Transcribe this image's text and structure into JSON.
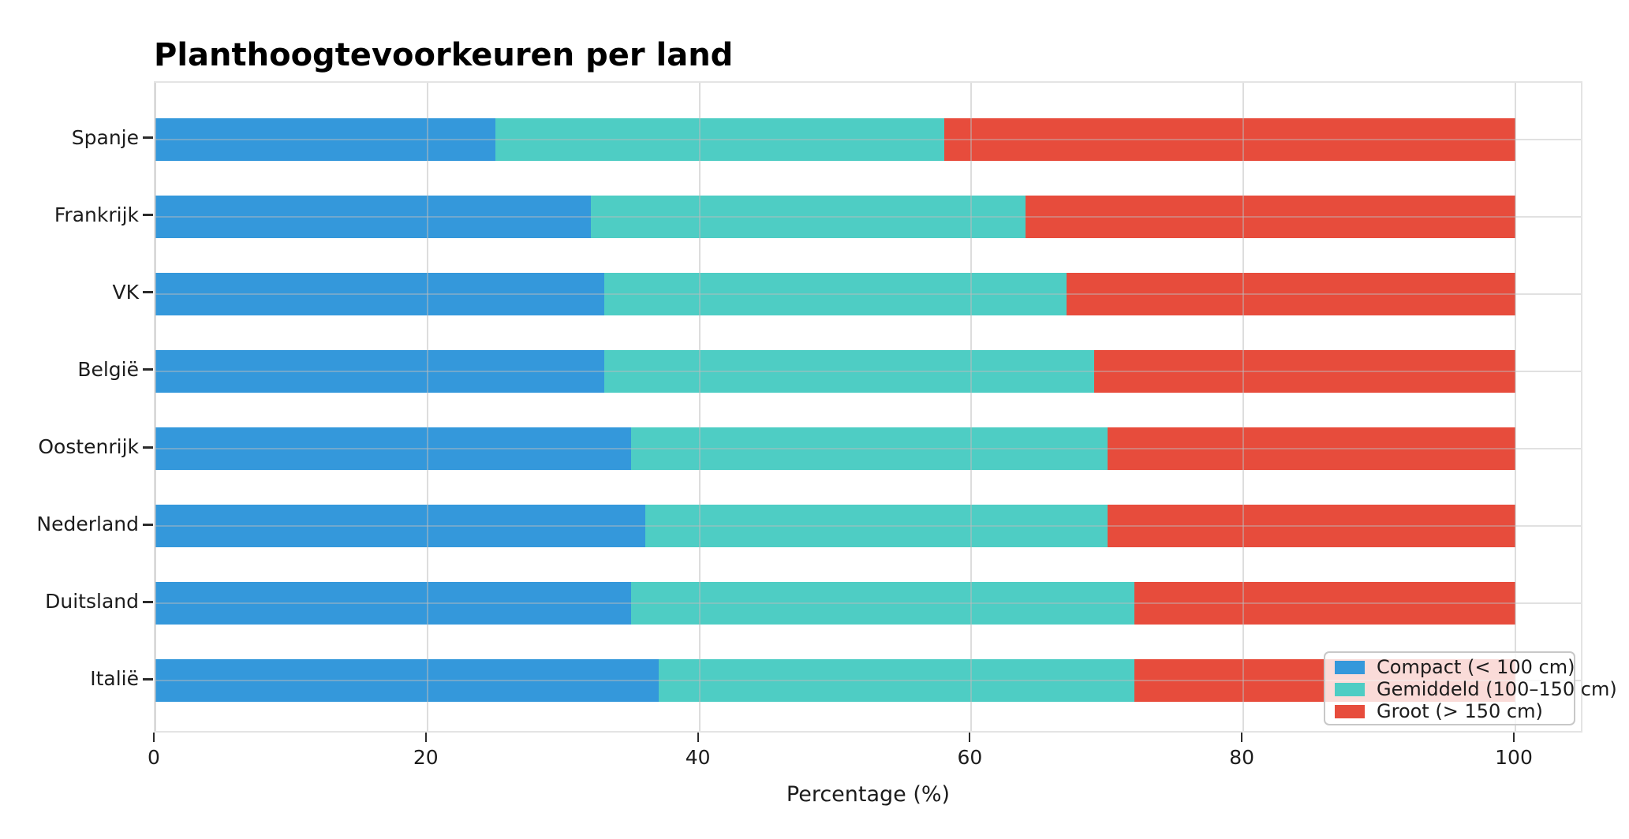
{
  "chart_data": {
    "type": "bar",
    "orientation": "horizontal",
    "stacked": true,
    "title": "Planthoogtevoorkeuren per land",
    "xlabel": "Percentage (%)",
    "categories": [
      "Spanje",
      "Frankrijk",
      "VK",
      "België",
      "Oostenrijk",
      "Nederland",
      "Duitsland",
      "Italië"
    ],
    "series": [
      {
        "name": "Compact (< 100 cm)",
        "color": "#3498db",
        "values": [
          25,
          32,
          33,
          33,
          35,
          36,
          35,
          37
        ]
      },
      {
        "name": "Gemiddeld (100–150 cm)",
        "color": "#4ECDC4",
        "values": [
          33,
          32,
          34,
          36,
          35,
          34,
          37,
          35
        ]
      },
      {
        "name": "Groot (> 150 cm)",
        "color": "#e74c3c",
        "values": [
          42,
          36,
          33,
          31,
          30,
          30,
          28,
          28
        ]
      }
    ],
    "xlim": [
      0,
      100
    ],
    "xticks": [
      0,
      20,
      40,
      60,
      80,
      100
    ],
    "grid": true,
    "legend_position": "lower-right"
  },
  "style": {
    "accent_blue": "#3498db",
    "accent_teal": "#4ECDC4",
    "accent_red": "#e74c3c",
    "grid_color": "#bcbcbc",
    "text_color": "#1c1c1c"
  }
}
